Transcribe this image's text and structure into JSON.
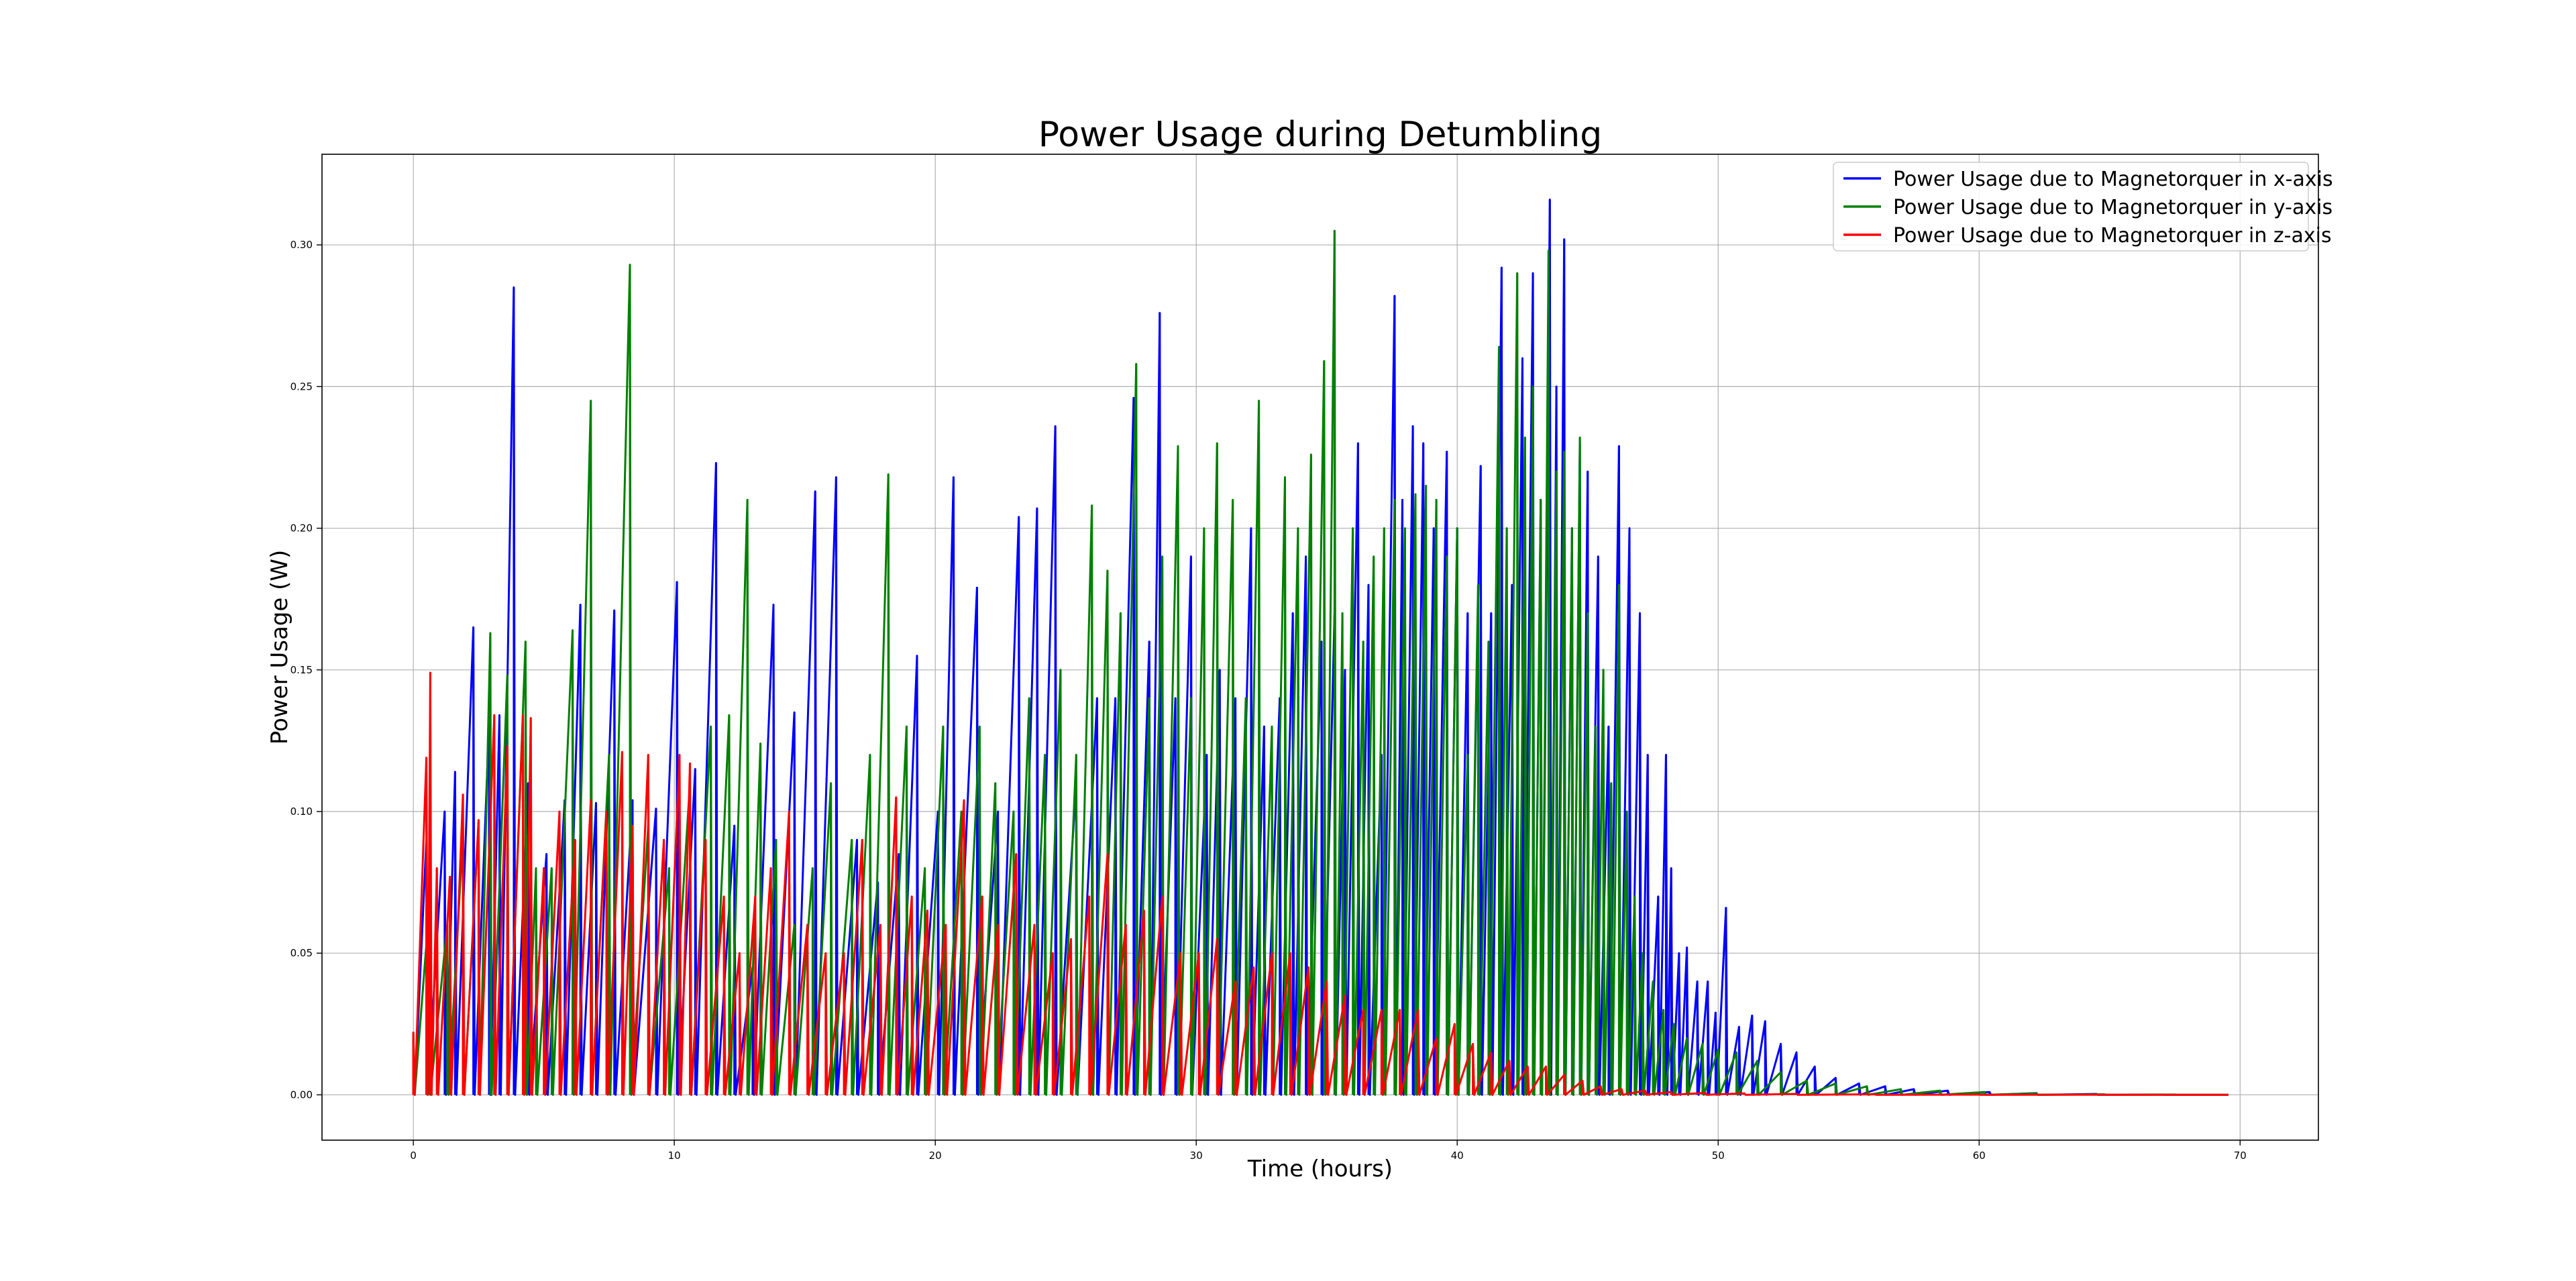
{
  "chart_data": {
    "type": "line",
    "title": "Power Usage during Detumbling",
    "xlabel": "Time (hours)",
    "ylabel": "Power Usage (W)",
    "xlim": [
      -3.5,
      73
    ],
    "ylim": [
      -0.016,
      0.332
    ],
    "xticks": [
      0,
      10,
      20,
      30,
      40,
      50,
      60,
      70
    ],
    "xtick_labels": [
      "0",
      "10",
      "20",
      "30",
      "40",
      "50",
      "60",
      "70"
    ],
    "yticks": [
      0.0,
      0.05,
      0.1,
      0.15,
      0.2,
      0.25,
      0.3
    ],
    "ytick_labels": [
      "0.00",
      "0.05",
      "0.10",
      "0.15",
      "0.20",
      "0.25",
      "0.30"
    ],
    "grid": true,
    "legend_position": "upper right",
    "series": [
      {
        "name": "Power Usage due to Magnetorquer in x-axis",
        "color": "#0000ff",
        "x": [
          0.0,
          0.5,
          1.2,
          1.6,
          2.3,
          2.9,
          3.3,
          3.85,
          4.4,
          5.1,
          5.8,
          6.4,
          7.0,
          7.7,
          8.4,
          9.3,
          10.1,
          10.8,
          11.6,
          12.3,
          13.0,
          13.8,
          14.6,
          15.4,
          16.2,
          17.0,
          17.8,
          18.6,
          19.3,
          20.1,
          20.7,
          21.6,
          22.4,
          23.2,
          23.9,
          24.6,
          25.4,
          26.2,
          26.9,
          27.6,
          28.2,
          28.6,
          29.2,
          29.8,
          30.4,
          30.9,
          31.5,
          32.1,
          32.6,
          33.2,
          33.7,
          34.2,
          34.8,
          35.3,
          35.7,
          36.2,
          36.6,
          37.1,
          37.6,
          37.9,
          38.3,
          38.7,
          39.1,
          39.6,
          40.0,
          40.4,
          40.9,
          41.3,
          41.7,
          42.1,
          42.5,
          42.9,
          43.2,
          43.55,
          43.8,
          44.1,
          44.4,
          44.7,
          45.0,
          45.4,
          45.8,
          46.2,
          46.6,
          47.0,
          47.3,
          47.7,
          48.0,
          48.2,
          48.5,
          48.8,
          49.2,
          49.6,
          49.9,
          50.3,
          50.8,
          51.3,
          51.8,
          52.4,
          53.0,
          53.7,
          54.5,
          55.4,
          56.4,
          57.5,
          58.8,
          60.4,
          62.2,
          64.5,
          67.0,
          69.5
        ],
        "y": [
          0.02,
          0.09,
          0.1,
          0.114,
          0.165,
          0.131,
          0.134,
          0.285,
          0.11,
          0.085,
          0.104,
          0.173,
          0.103,
          0.171,
          0.104,
          0.101,
          0.181,
          0.115,
          0.223,
          0.095,
          0.045,
          0.173,
          0.135,
          0.213,
          0.218,
          0.09,
          0.075,
          0.085,
          0.155,
          0.1,
          0.218,
          0.179,
          0.1,
          0.204,
          0.207,
          0.236,
          0.11,
          0.14,
          0.14,
          0.246,
          0.16,
          0.276,
          0.14,
          0.19,
          0.12,
          0.15,
          0.14,
          0.2,
          0.13,
          0.14,
          0.17,
          0.19,
          0.16,
          0.17,
          0.15,
          0.23,
          0.18,
          0.12,
          0.282,
          0.21,
          0.236,
          0.23,
          0.2,
          0.227,
          0.2,
          0.17,
          0.222,
          0.17,
          0.292,
          0.18,
          0.26,
          0.29,
          0.21,
          0.316,
          0.25,
          0.302,
          0.2,
          0.23,
          0.22,
          0.19,
          0.13,
          0.229,
          0.2,
          0.17,
          0.12,
          0.07,
          0.12,
          0.08,
          0.05,
          0.052,
          0.04,
          0.04,
          0.029,
          0.066,
          0.024,
          0.028,
          0.026,
          0.018,
          0.015,
          0.01,
          0.006,
          0.004,
          0.003,
          0.002,
          0.0015,
          0.001,
          0.0006,
          0.0003,
          0.0001,
          0.0
        ]
      },
      {
        "name": "Power Usage due to Magnetorquer in y-axis",
        "color": "#008000",
        "x": [
          0.0,
          0.6,
          1.3,
          1.9,
          2.5,
          2.95,
          3.6,
          4.3,
          4.7,
          5.3,
          6.1,
          6.8,
          7.5,
          8.3,
          9.0,
          9.8,
          10.6,
          11.4,
          12.1,
          12.8,
          13.3,
          13.9,
          14.6,
          15.3,
          16.0,
          16.8,
          17.5,
          18.2,
          18.9,
          19.6,
          20.3,
          21.0,
          21.7,
          22.3,
          23.0,
          23.6,
          24.2,
          24.8,
          25.4,
          26.0,
          26.6,
          27.1,
          27.7,
          28.2,
          28.7,
          29.3,
          29.8,
          30.3,
          30.8,
          31.4,
          31.9,
          32.4,
          32.9,
          33.4,
          33.9,
          34.4,
          34.9,
          35.3,
          35.6,
          36.0,
          36.4,
          36.8,
          37.2,
          37.6,
          38.0,
          38.4,
          38.8,
          39.2,
          39.6,
          40.0,
          40.4,
          40.8,
          41.2,
          41.6,
          41.9,
          42.3,
          42.6,
          42.9,
          43.2,
          43.5,
          43.8,
          44.1,
          44.4,
          44.7,
          45.0,
          45.3,
          45.6,
          45.9,
          46.2,
          46.5,
          46.8,
          47.1,
          47.5,
          47.9,
          48.3,
          48.8,
          49.4,
          50.0,
          50.7,
          51.5,
          52.4,
          53.4,
          54.5,
          55.7,
          57.0,
          58.5,
          60.2,
          62.2,
          64.8,
          67.5,
          69.5
        ],
        "y": [
          0.021,
          0.065,
          0.06,
          0.092,
          0.096,
          0.163,
          0.148,
          0.16,
          0.08,
          0.08,
          0.164,
          0.245,
          0.12,
          0.293,
          0.095,
          0.08,
          0.11,
          0.13,
          0.134,
          0.21,
          0.124,
          0.09,
          0.06,
          0.08,
          0.11,
          0.09,
          0.12,
          0.219,
          0.13,
          0.08,
          0.13,
          0.1,
          0.13,
          0.11,
          0.1,
          0.14,
          0.12,
          0.15,
          0.12,
          0.208,
          0.185,
          0.17,
          0.258,
          0.14,
          0.19,
          0.229,
          0.14,
          0.2,
          0.23,
          0.21,
          0.14,
          0.245,
          0.13,
          0.218,
          0.2,
          0.226,
          0.259,
          0.305,
          0.17,
          0.2,
          0.16,
          0.19,
          0.2,
          0.21,
          0.2,
          0.212,
          0.215,
          0.21,
          0.19,
          0.2,
          0.12,
          0.18,
          0.16,
          0.264,
          0.2,
          0.29,
          0.232,
          0.25,
          0.21,
          0.298,
          0.22,
          0.227,
          0.2,
          0.232,
          0.17,
          0.13,
          0.15,
          0.11,
          0.18,
          0.1,
          0.07,
          0.05,
          0.04,
          0.03,
          0.025,
          0.02,
          0.018,
          0.016,
          0.015,
          0.012,
          0.008,
          0.005,
          0.004,
          0.003,
          0.002,
          0.0015,
          0.001,
          0.0005,
          0.0002,
          0.0001,
          0.0
        ]
      },
      {
        "name": "Power Usage due to Magnetorquer in z-axis",
        "color": "#ff0000",
        "x": [
          0.0,
          0.5,
          0.65,
          0.9,
          1.4,
          1.9,
          2.5,
          3.1,
          3.6,
          4.2,
          4.5,
          5.0,
          5.6,
          6.2,
          6.8,
          7.4,
          8.0,
          8.4,
          9.0,
          9.6,
          10.2,
          10.6,
          11.2,
          11.9,
          12.5,
          13.1,
          13.7,
          14.4,
          15.1,
          15.8,
          16.5,
          17.2,
          17.9,
          18.5,
          19.1,
          19.7,
          20.4,
          21.1,
          21.8,
          22.4,
          23.1,
          23.8,
          24.5,
          25.2,
          25.9,
          26.6,
          27.3,
          28.0,
          28.7,
          29.4,
          30.1,
          30.8,
          31.5,
          32.2,
          32.9,
          33.6,
          34.3,
          35.0,
          35.7,
          36.4,
          37.1,
          37.8,
          38.5,
          39.2,
          39.9,
          40.6,
          41.3,
          42.0,
          42.7,
          43.4,
          44.1,
          44.8,
          45.5,
          46.3,
          47.2,
          48.2,
          49.5,
          51.0,
          53.0,
          56.0,
          60.0,
          65.0,
          69.5
        ],
        "y": [
          0.022,
          0.119,
          0.149,
          0.08,
          0.077,
          0.106,
          0.097,
          0.134,
          0.123,
          0.134,
          0.133,
          0.08,
          0.1,
          0.09,
          0.104,
          0.1,
          0.121,
          0.095,
          0.12,
          0.09,
          0.12,
          0.117,
          0.09,
          0.07,
          0.05,
          0.07,
          0.08,
          0.1,
          0.06,
          0.05,
          0.05,
          0.09,
          0.06,
          0.105,
          0.07,
          0.065,
          0.06,
          0.104,
          0.07,
          0.06,
          0.085,
          0.06,
          0.05,
          0.055,
          0.07,
          0.085,
          0.06,
          0.065,
          0.07,
          0.05,
          0.05,
          0.055,
          0.04,
          0.045,
          0.05,
          0.05,
          0.045,
          0.04,
          0.035,
          0.03,
          0.03,
          0.03,
          0.03,
          0.02,
          0.025,
          0.018,
          0.015,
          0.012,
          0.01,
          0.01,
          0.007,
          0.005,
          0.003,
          0.002,
          0.0015,
          0.001,
          0.0007,
          0.0005,
          0.0003,
          0.0002,
          0.0001,
          5e-05,
          0.0
        ]
      }
    ]
  }
}
